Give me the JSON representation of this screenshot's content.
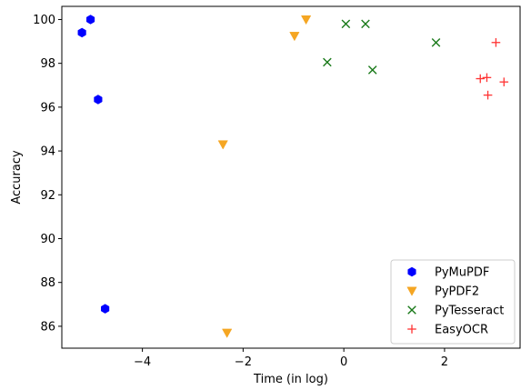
{
  "chart_data": {
    "type": "scatter",
    "xlabel": "Time (in log)",
    "ylabel": "Accuracy",
    "xlim": [
      -5.6,
      3.5
    ],
    "ylim": [
      85.0,
      100.6
    ],
    "xticks": [
      -4,
      -2,
      0,
      2
    ],
    "yticks": [
      86,
      88,
      90,
      92,
      94,
      96,
      98,
      100
    ],
    "xtick_labels": [
      "−4",
      "−2",
      "0",
      "2"
    ],
    "ytick_labels": [
      "86",
      "88",
      "90",
      "92",
      "94",
      "96",
      "98",
      "100"
    ],
    "grid": false,
    "legend_position": "bottom-right",
    "series": [
      {
        "name": "PyMuPDF",
        "marker": "hexagon",
        "color": "#0000ff",
        "points": [
          [
            -5.03,
            100.0
          ],
          [
            -5.2,
            99.4
          ],
          [
            -4.88,
            96.35
          ],
          [
            -4.74,
            86.8
          ]
        ]
      },
      {
        "name": "PyPDF2",
        "marker": "triangle-down",
        "color": "#f5a623",
        "points": [
          [
            -0.75,
            100.0
          ],
          [
            -0.98,
            99.25
          ],
          [
            -2.4,
            94.3
          ],
          [
            -2.32,
            85.7
          ]
        ]
      },
      {
        "name": "PyTesseract",
        "marker": "x",
        "color": "#1a7a1a",
        "points": [
          [
            0.04,
            99.8
          ],
          [
            0.43,
            99.8
          ],
          [
            -0.33,
            98.05
          ],
          [
            0.57,
            97.7
          ],
          [
            1.83,
            98.95
          ]
        ]
      },
      {
        "name": "EasyOCR",
        "marker": "plus",
        "color": "#ff3333",
        "points": [
          [
            3.02,
            98.95
          ],
          [
            2.71,
            97.3
          ],
          [
            2.84,
            97.35
          ],
          [
            3.18,
            97.15
          ],
          [
            2.86,
            96.55
          ]
        ]
      }
    ]
  }
}
